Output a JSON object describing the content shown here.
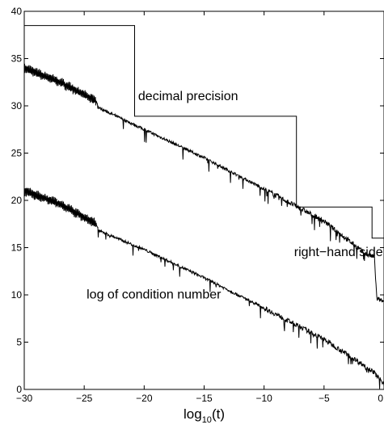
{
  "chart_data": {
    "type": "line",
    "title": "",
    "xlabel": "log10(t)",
    "xlabel_base": "log",
    "xlabel_subscript": "10",
    "xlabel_suffix": "(t)",
    "ylabel": "",
    "xlim": [
      -30,
      0
    ],
    "ylim": [
      0,
      40
    ],
    "xticks": [
      -30,
      -25,
      -20,
      -15,
      -10,
      -5,
      0
    ],
    "yticks": [
      0,
      5,
      10,
      15,
      20,
      25,
      30,
      35,
      40
    ],
    "grid": false,
    "series": [
      {
        "label": "decimal precision",
        "style": "step",
        "x": [
          -30,
          -20.8,
          -20.8,
          -7.3,
          -7.3,
          -1.0,
          -1.0,
          0
        ],
        "y": [
          38.5,
          38.5,
          28.9,
          28.9,
          19.3,
          19.3,
          16.0,
          16.0
        ]
      },
      {
        "label": "right−hand side of C",
        "style": "noisy",
        "x": [
          -30,
          -27,
          -24,
          -23.8,
          -20,
          -15,
          -10,
          -5,
          -1.5,
          -0.8,
          -0.6,
          -0.2,
          0
        ],
        "y": [
          34.0,
          32.5,
          30.5,
          29.8,
          27.5,
          24.5,
          21.2,
          17.8,
          14.3,
          14.0,
          9.6,
          9.4,
          9.2
        ]
      },
      {
        "label": "log of condition number",
        "style": "noisy",
        "x": [
          -30,
          -27,
          -24,
          -23.8,
          -20,
          -15,
          -10,
          -5,
          -1,
          0
        ],
        "y": [
          21.0,
          19.6,
          17.5,
          16.8,
          14.8,
          11.8,
          8.6,
          5.3,
          2.0,
          0.6
        ]
      }
    ],
    "annotations": [
      {
        "text": "decimal precision",
        "x": -20.5,
        "y": 30.6
      },
      {
        "text": "right−hand side of C",
        "x": -7.5,
        "y": 14.1
      },
      {
        "text": "log of condition number",
        "x": -24.8,
        "y": 9.6
      }
    ]
  }
}
